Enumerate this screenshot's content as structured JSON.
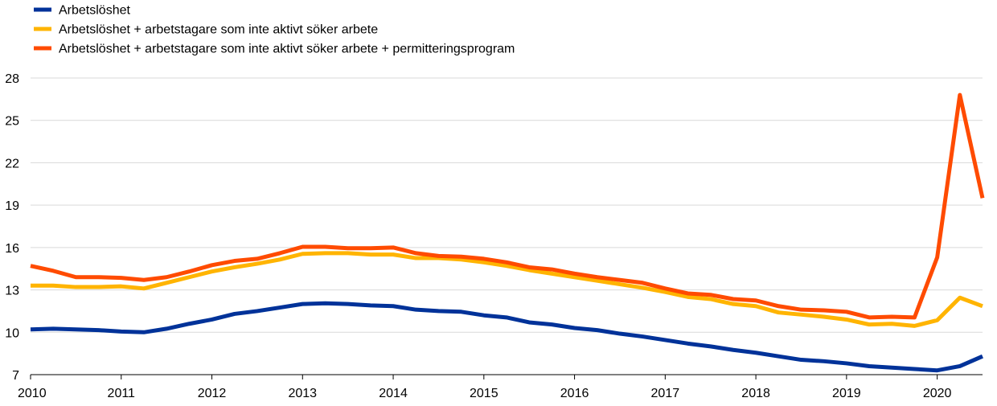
{
  "chart_data": {
    "type": "line",
    "title": "",
    "xlabel": "",
    "ylabel": "",
    "xlim": [
      2010.0,
      2020.5
    ],
    "ylim": [
      7,
      28
    ],
    "x_ticks": [
      "2010",
      "2011",
      "2012",
      "2013",
      "2014",
      "2015",
      "2016",
      "2017",
      "2018",
      "2019",
      "2020"
    ],
    "y_ticks": [
      "7",
      "10",
      "13",
      "16",
      "19",
      "22",
      "25",
      "28"
    ],
    "grid": "horizontal",
    "legend_position": "top-left",
    "x": [
      2010.0,
      2010.25,
      2010.5,
      2010.75,
      2011.0,
      2011.25,
      2011.5,
      2011.75,
      2012.0,
      2012.25,
      2012.5,
      2012.75,
      2013.0,
      2013.25,
      2013.5,
      2013.75,
      2014.0,
      2014.25,
      2014.5,
      2014.75,
      2015.0,
      2015.25,
      2015.5,
      2015.75,
      2016.0,
      2016.25,
      2016.5,
      2016.75,
      2017.0,
      2017.25,
      2017.5,
      2017.75,
      2018.0,
      2018.25,
      2018.5,
      2018.75,
      2019.0,
      2019.25,
      2019.5,
      2019.75,
      2020.0,
      2020.25,
      2020.5
    ],
    "series": [
      {
        "name": "Arbetslöshet",
        "color": "#003299",
        "values": [
          10.2,
          10.25,
          10.2,
          10.15,
          10.05,
          10.0,
          10.25,
          10.6,
          10.9,
          11.3,
          11.5,
          11.75,
          12.0,
          12.05,
          12.0,
          11.9,
          11.85,
          11.6,
          11.5,
          11.45,
          11.2,
          11.05,
          10.7,
          10.55,
          10.3,
          10.15,
          9.9,
          9.7,
          9.45,
          9.2,
          9.0,
          8.75,
          8.55,
          8.3,
          8.05,
          7.95,
          7.8,
          7.6,
          7.5,
          7.4,
          7.3,
          7.6,
          8.3
        ]
      },
      {
        "name": "Arbetslöshet + arbetstagare som inte aktivt söker arbete",
        "color": "#FFB400",
        "values": [
          13.3,
          13.3,
          13.2,
          13.2,
          13.25,
          13.1,
          13.5,
          13.9,
          14.3,
          14.6,
          14.85,
          15.15,
          15.55,
          15.6,
          15.6,
          15.5,
          15.5,
          15.25,
          15.25,
          15.15,
          14.95,
          14.7,
          14.4,
          14.15,
          13.9,
          13.65,
          13.4,
          13.15,
          12.85,
          12.5,
          12.35,
          12.0,
          11.85,
          11.4,
          11.25,
          11.1,
          10.9,
          10.55,
          10.6,
          10.45,
          10.85,
          12.45,
          11.85
        ]
      },
      {
        "name": "Arbetslöshet + arbetstagare som inte aktivt söker arbete + permitteringsprogram",
        "color": "#FF4B00",
        "values": [
          14.7,
          14.35,
          13.9,
          13.9,
          13.85,
          13.7,
          13.9,
          14.3,
          14.75,
          15.05,
          15.2,
          15.6,
          16.05,
          16.05,
          15.95,
          15.95,
          16.0,
          15.6,
          15.4,
          15.35,
          15.2,
          14.95,
          14.6,
          14.45,
          14.15,
          13.9,
          13.7,
          13.5,
          13.1,
          12.75,
          12.65,
          12.35,
          12.25,
          11.85,
          11.6,
          11.55,
          11.45,
          11.05,
          11.1,
          11.05,
          15.3,
          26.8,
          19.5
        ]
      }
    ]
  }
}
